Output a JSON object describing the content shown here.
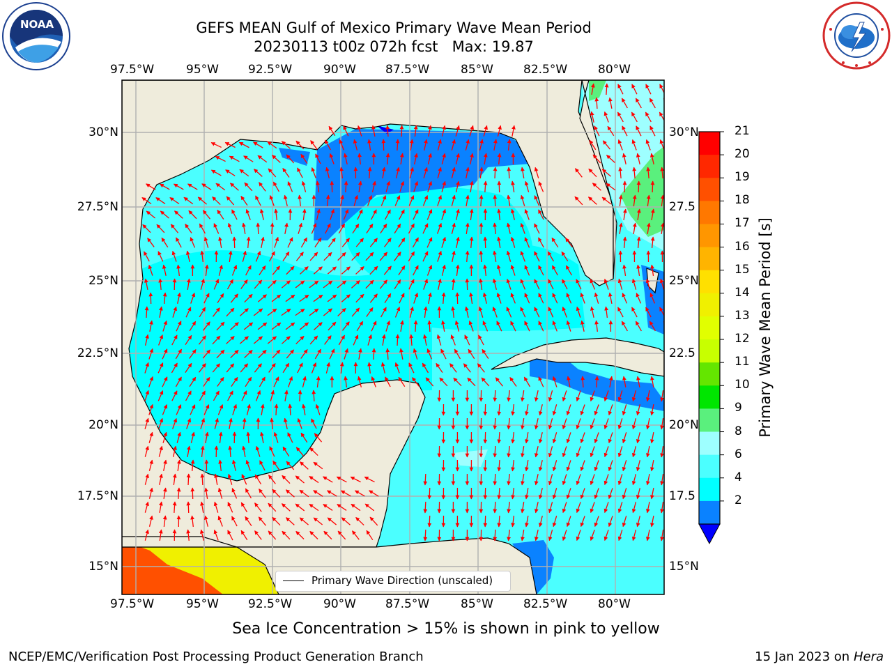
{
  "title": {
    "line1": "GEFS MEAN Gulf of Mexico Primary Wave Mean Period",
    "line2": "20230113 t00z 072h fcst   Max: 19.87"
  },
  "logos": {
    "left": {
      "icon": "noaa-logo-icon",
      "text": "NOAA",
      "ring_text": "NATIONAL OCEANIC AND ATMOSPHERIC ADMINISTRATION · U.S. DEPARTMENT OF COMMERCE"
    },
    "right": {
      "icon": "nws-logo-icon",
      "ring_text": "NATIONAL WEATHER SERVICE"
    }
  },
  "map": {
    "lon_labels": [
      "97.5°W",
      "95°W",
      "92.5°W",
      "90°W",
      "87.5°W",
      "85°W",
      "82.5°W",
      "80°W"
    ],
    "lat_labels_left": [
      "30°N",
      "27.5°N",
      "25°N",
      "22.5°N",
      "20°N",
      "17.5°N",
      "15°N"
    ],
    "lat_labels_right": [
      "30°N",
      "27.5",
      "25°N",
      "22.5",
      "20°N",
      "17.5",
      "15°N"
    ],
    "lon_range": [
      -98,
      -78.2
    ],
    "lat_range": [
      14,
      31.6
    ],
    "grid": true,
    "colors": {
      "land": "#efecdc",
      "arrow": "#ff0000",
      "coast": "#000000",
      "grid": "#b0b0b0"
    },
    "legend": {
      "label": "Primary Wave Direction (unscaled)",
      "position": "lower-center"
    }
  },
  "colorbar": {
    "label": "Primary Wave Mean Period [s]",
    "ticks": [
      "21",
      "20",
      "19",
      "18",
      "17",
      "16",
      "15",
      "14",
      "13",
      "12",
      "11",
      "10",
      "9",
      "8",
      "6",
      "4",
      "2"
    ],
    "colors": [
      "#ff0000",
      "#ff2800",
      "#ff5000",
      "#ff7800",
      "#ff9600",
      "#ffb400",
      "#ffe000",
      "#f0f000",
      "#e1ff00",
      "#c8ff00",
      "#64e600",
      "#00e600",
      "#5af07d",
      "#9effff",
      "#4bffff",
      "#00ffff",
      "#0a82ff"
    ],
    "extend_color": "#0000ff"
  },
  "note": "Sea Ice Concentration > 15% is shown in pink to yellow",
  "footer": {
    "left": "NCEP/EMC/Verification Post Processing Product Generation Branch",
    "right_date": "15 Jan 2023 on",
    "right_machine": "Hera"
  }
}
